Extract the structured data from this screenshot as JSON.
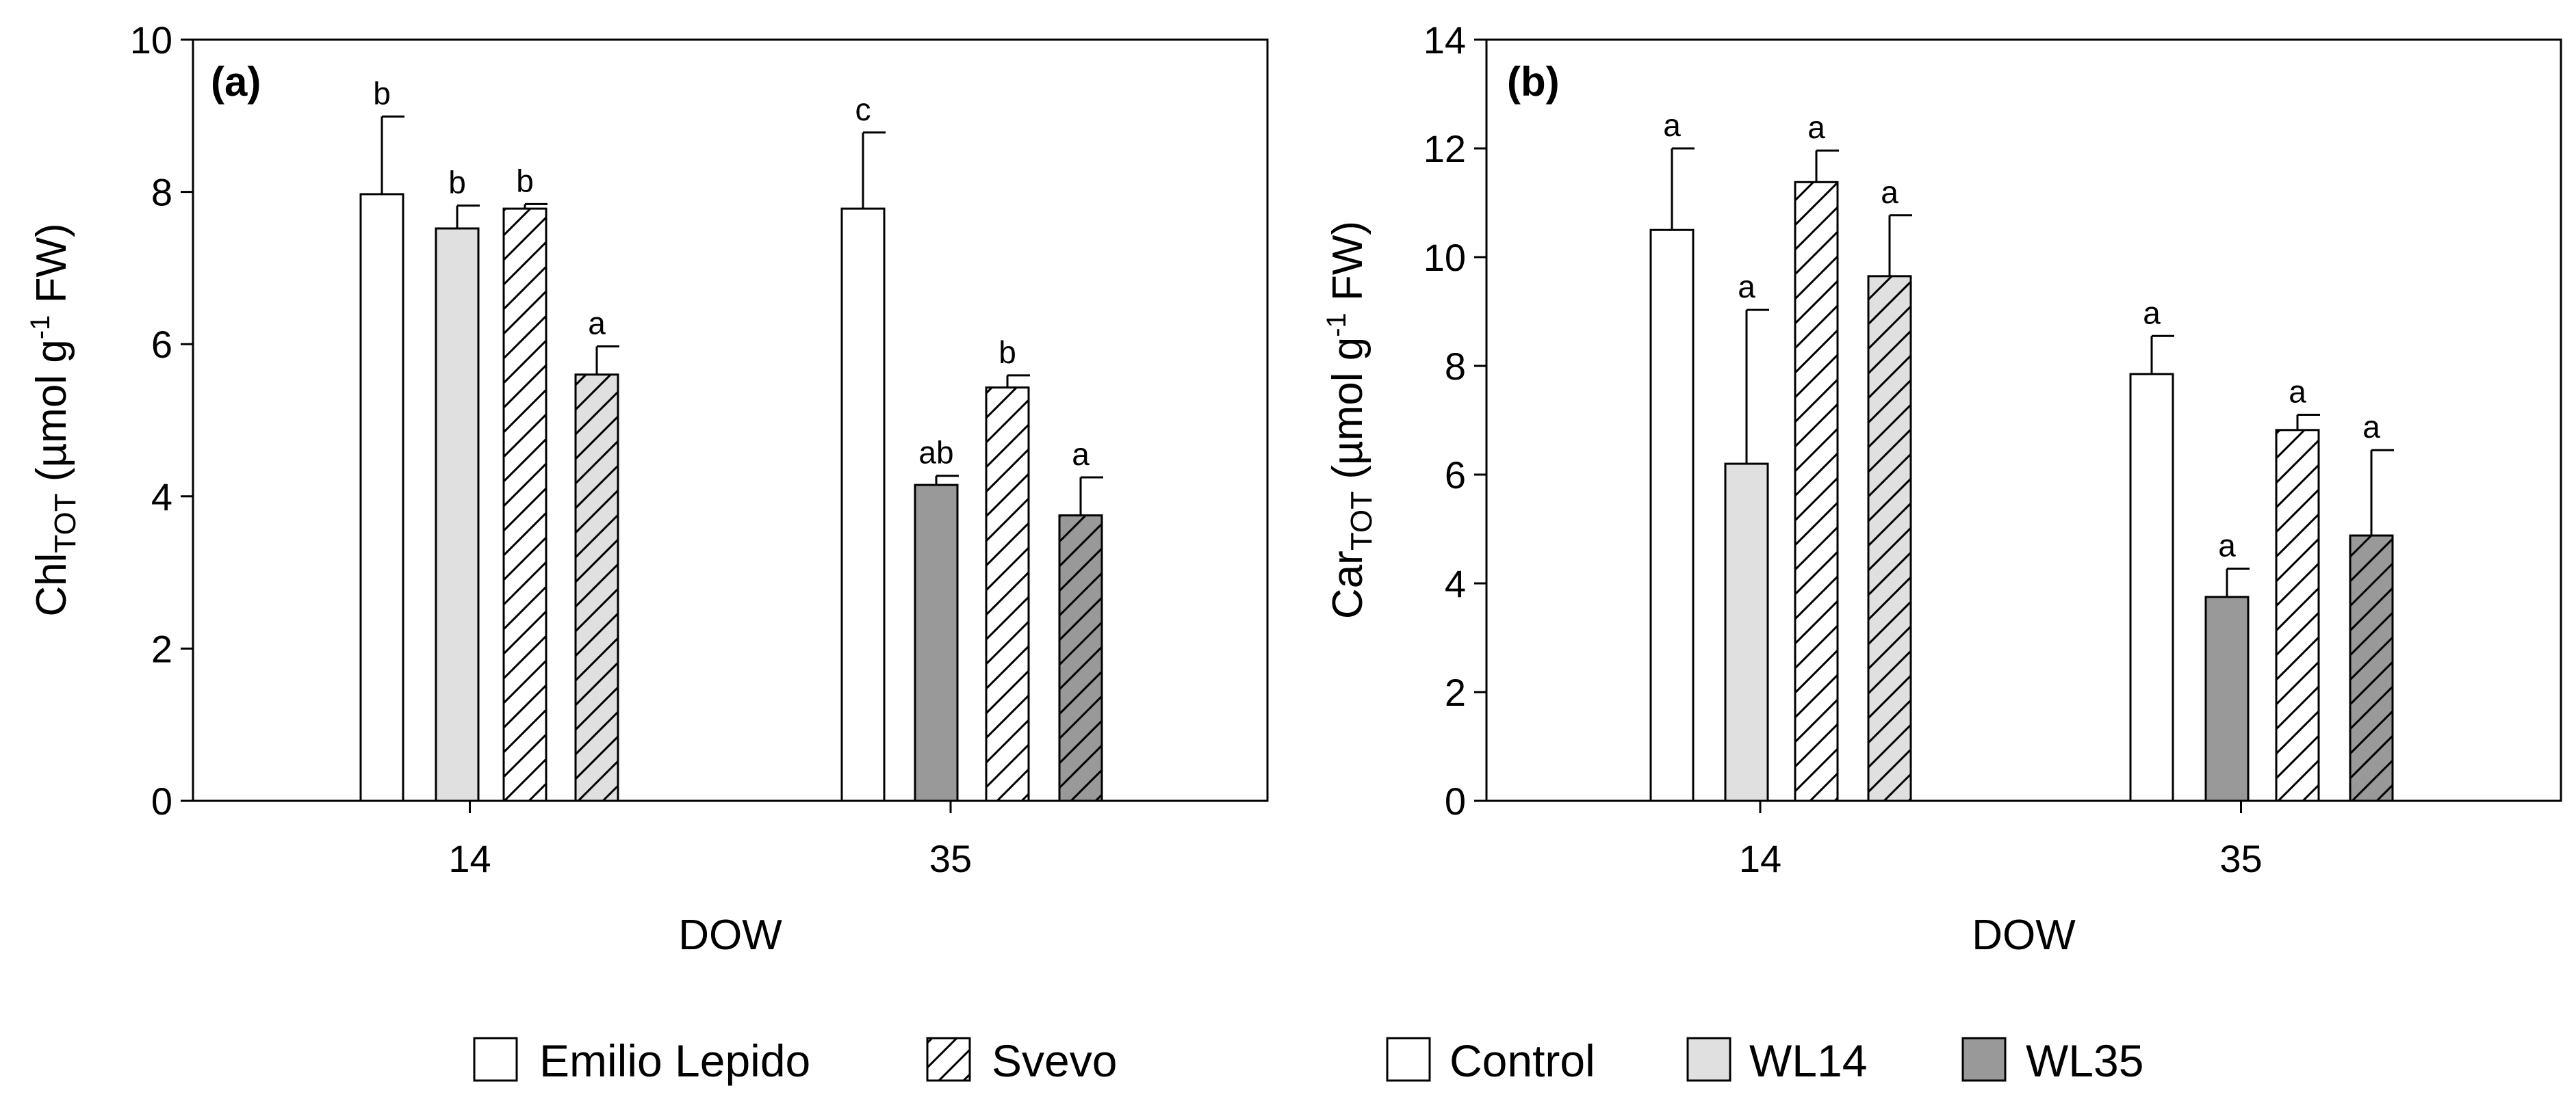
{
  "chart_data": [
    {
      "type": "bar",
      "panel_label": "(a)",
      "xlabel": "DOW",
      "ylabel_main": "Chl",
      "ylabel_sub": "TOT",
      "ylabel_units_pre": " (µmol g",
      "ylabel_units_sup": "-1",
      "ylabel_units_post": " FW)",
      "ylim": [
        0,
        10
      ],
      "yticks": [
        0,
        2,
        4,
        6,
        8,
        10
      ],
      "categories": [
        "14",
        "35"
      ],
      "bars": [
        {
          "category": "14",
          "cultivar": "Emilio Lepido",
          "treatment": "Control",
          "value": 7.97,
          "error": 1.02,
          "letter": "b"
        },
        {
          "category": "14",
          "cultivar": "Emilio Lepido",
          "treatment": "WL14",
          "value": 7.52,
          "error": 0.3,
          "letter": "b"
        },
        {
          "category": "14",
          "cultivar": "Svevo",
          "treatment": "Control",
          "value": 7.78,
          "error": 0.06,
          "letter": "b"
        },
        {
          "category": "14",
          "cultivar": "Svevo",
          "treatment": "WL14",
          "value": 5.6,
          "error": 0.37,
          "letter": "a"
        },
        {
          "category": "35",
          "cultivar": "Emilio Lepido",
          "treatment": "Control",
          "value": 7.78,
          "error": 1.0,
          "letter": "c"
        },
        {
          "category": "35",
          "cultivar": "Emilio Lepido",
          "treatment": "WL35",
          "value": 4.15,
          "error": 0.12,
          "letter": "ab"
        },
        {
          "category": "35",
          "cultivar": "Svevo",
          "treatment": "Control",
          "value": 5.43,
          "error": 0.16,
          "letter": "b"
        },
        {
          "category": "35",
          "cultivar": "Svevo",
          "treatment": "WL35",
          "value": 3.75,
          "error": 0.5,
          "letter": "a"
        }
      ]
    },
    {
      "type": "bar",
      "panel_label": "(b)",
      "xlabel": "DOW",
      "ylabel_main": "Car",
      "ylabel_sub": "TOT",
      "ylabel_units_pre": " (µmol g",
      "ylabel_units_sup": "-1",
      "ylabel_units_post": " FW)",
      "ylim": [
        0,
        14
      ],
      "yticks": [
        0,
        2,
        4,
        6,
        8,
        10,
        12,
        14
      ],
      "categories": [
        "14",
        "35"
      ],
      "bars": [
        {
          "category": "14",
          "cultivar": "Emilio Lepido",
          "treatment": "Control",
          "value": 10.5,
          "error": 1.5,
          "letter": "a"
        },
        {
          "category": "14",
          "cultivar": "Emilio Lepido",
          "treatment": "WL14",
          "value": 6.2,
          "error": 2.83,
          "letter": "a"
        },
        {
          "category": "14",
          "cultivar": "Svevo",
          "treatment": "Control",
          "value": 11.38,
          "error": 0.58,
          "letter": "a"
        },
        {
          "category": "14",
          "cultivar": "Svevo",
          "treatment": "WL14",
          "value": 9.65,
          "error": 1.12,
          "letter": "a"
        },
        {
          "category": "35",
          "cultivar": "Emilio Lepido",
          "treatment": "Control",
          "value": 7.85,
          "error": 0.7,
          "letter": "a"
        },
        {
          "category": "35",
          "cultivar": "Emilio Lepido",
          "treatment": "WL35",
          "value": 3.75,
          "error": 0.52,
          "letter": "a"
        },
        {
          "category": "35",
          "cultivar": "Svevo",
          "treatment": "Control",
          "value": 6.82,
          "error": 0.28,
          "letter": "a"
        },
        {
          "category": "35",
          "cultivar": "Svevo",
          "treatment": "WL35",
          "value": 4.88,
          "error": 1.57,
          "letter": "a"
        }
      ]
    }
  ],
  "legend_cultivars": [
    {
      "label": "Emilio Lepido",
      "pattern": "solid"
    },
    {
      "label": "Svevo",
      "pattern": "hatched"
    }
  ],
  "legend_treatments": [
    {
      "label": "Control",
      "color": "#ffffff"
    },
    {
      "label": "WL14",
      "color": "#e0e0e0"
    },
    {
      "label": "WL35",
      "color": "#999999"
    }
  ]
}
